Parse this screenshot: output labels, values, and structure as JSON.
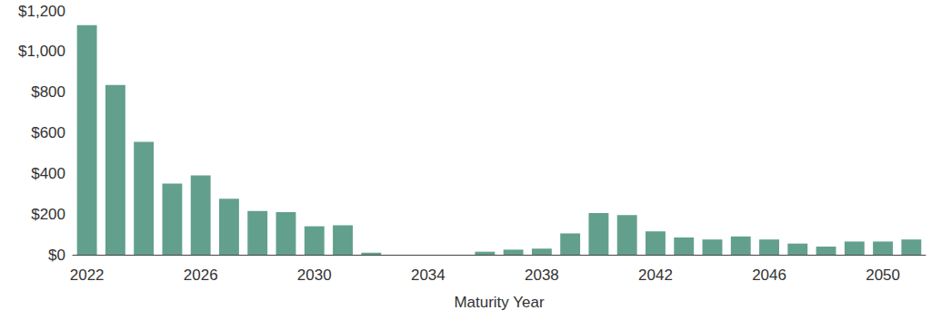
{
  "chart_data": {
    "type": "bar",
    "x_label": "Maturity Year",
    "categories": [
      "2022",
      null,
      null,
      null,
      "2026",
      null,
      null,
      null,
      "2030",
      null,
      null,
      null,
      "2034",
      null,
      null,
      null,
      "2038",
      null,
      null,
      null,
      "2042",
      null,
      null,
      null,
      "2046",
      null,
      null,
      null,
      "2050",
      null
    ],
    "values": [
      1130,
      835,
      555,
      350,
      390,
      275,
      215,
      210,
      140,
      145,
      10,
      0,
      0,
      0,
      15,
      25,
      30,
      105,
      205,
      195,
      115,
      85,
      75,
      90,
      75,
      55,
      40,
      65,
      65,
      75
    ],
    "color": "#62a08d",
    "ylim": [
      0,
      1200
    ],
    "yticks": [
      {
        "value": 0,
        "label": "$0"
      },
      {
        "value": 200,
        "label": "$200"
      },
      {
        "value": 400,
        "label": "$400"
      },
      {
        "value": 600,
        "label": "$600"
      },
      {
        "value": 800,
        "label": "$800"
      },
      {
        "value": 1000,
        "label": "$1,000"
      },
      {
        "value": 1200,
        "label": "$1,200"
      }
    ],
    "grid": false
  }
}
